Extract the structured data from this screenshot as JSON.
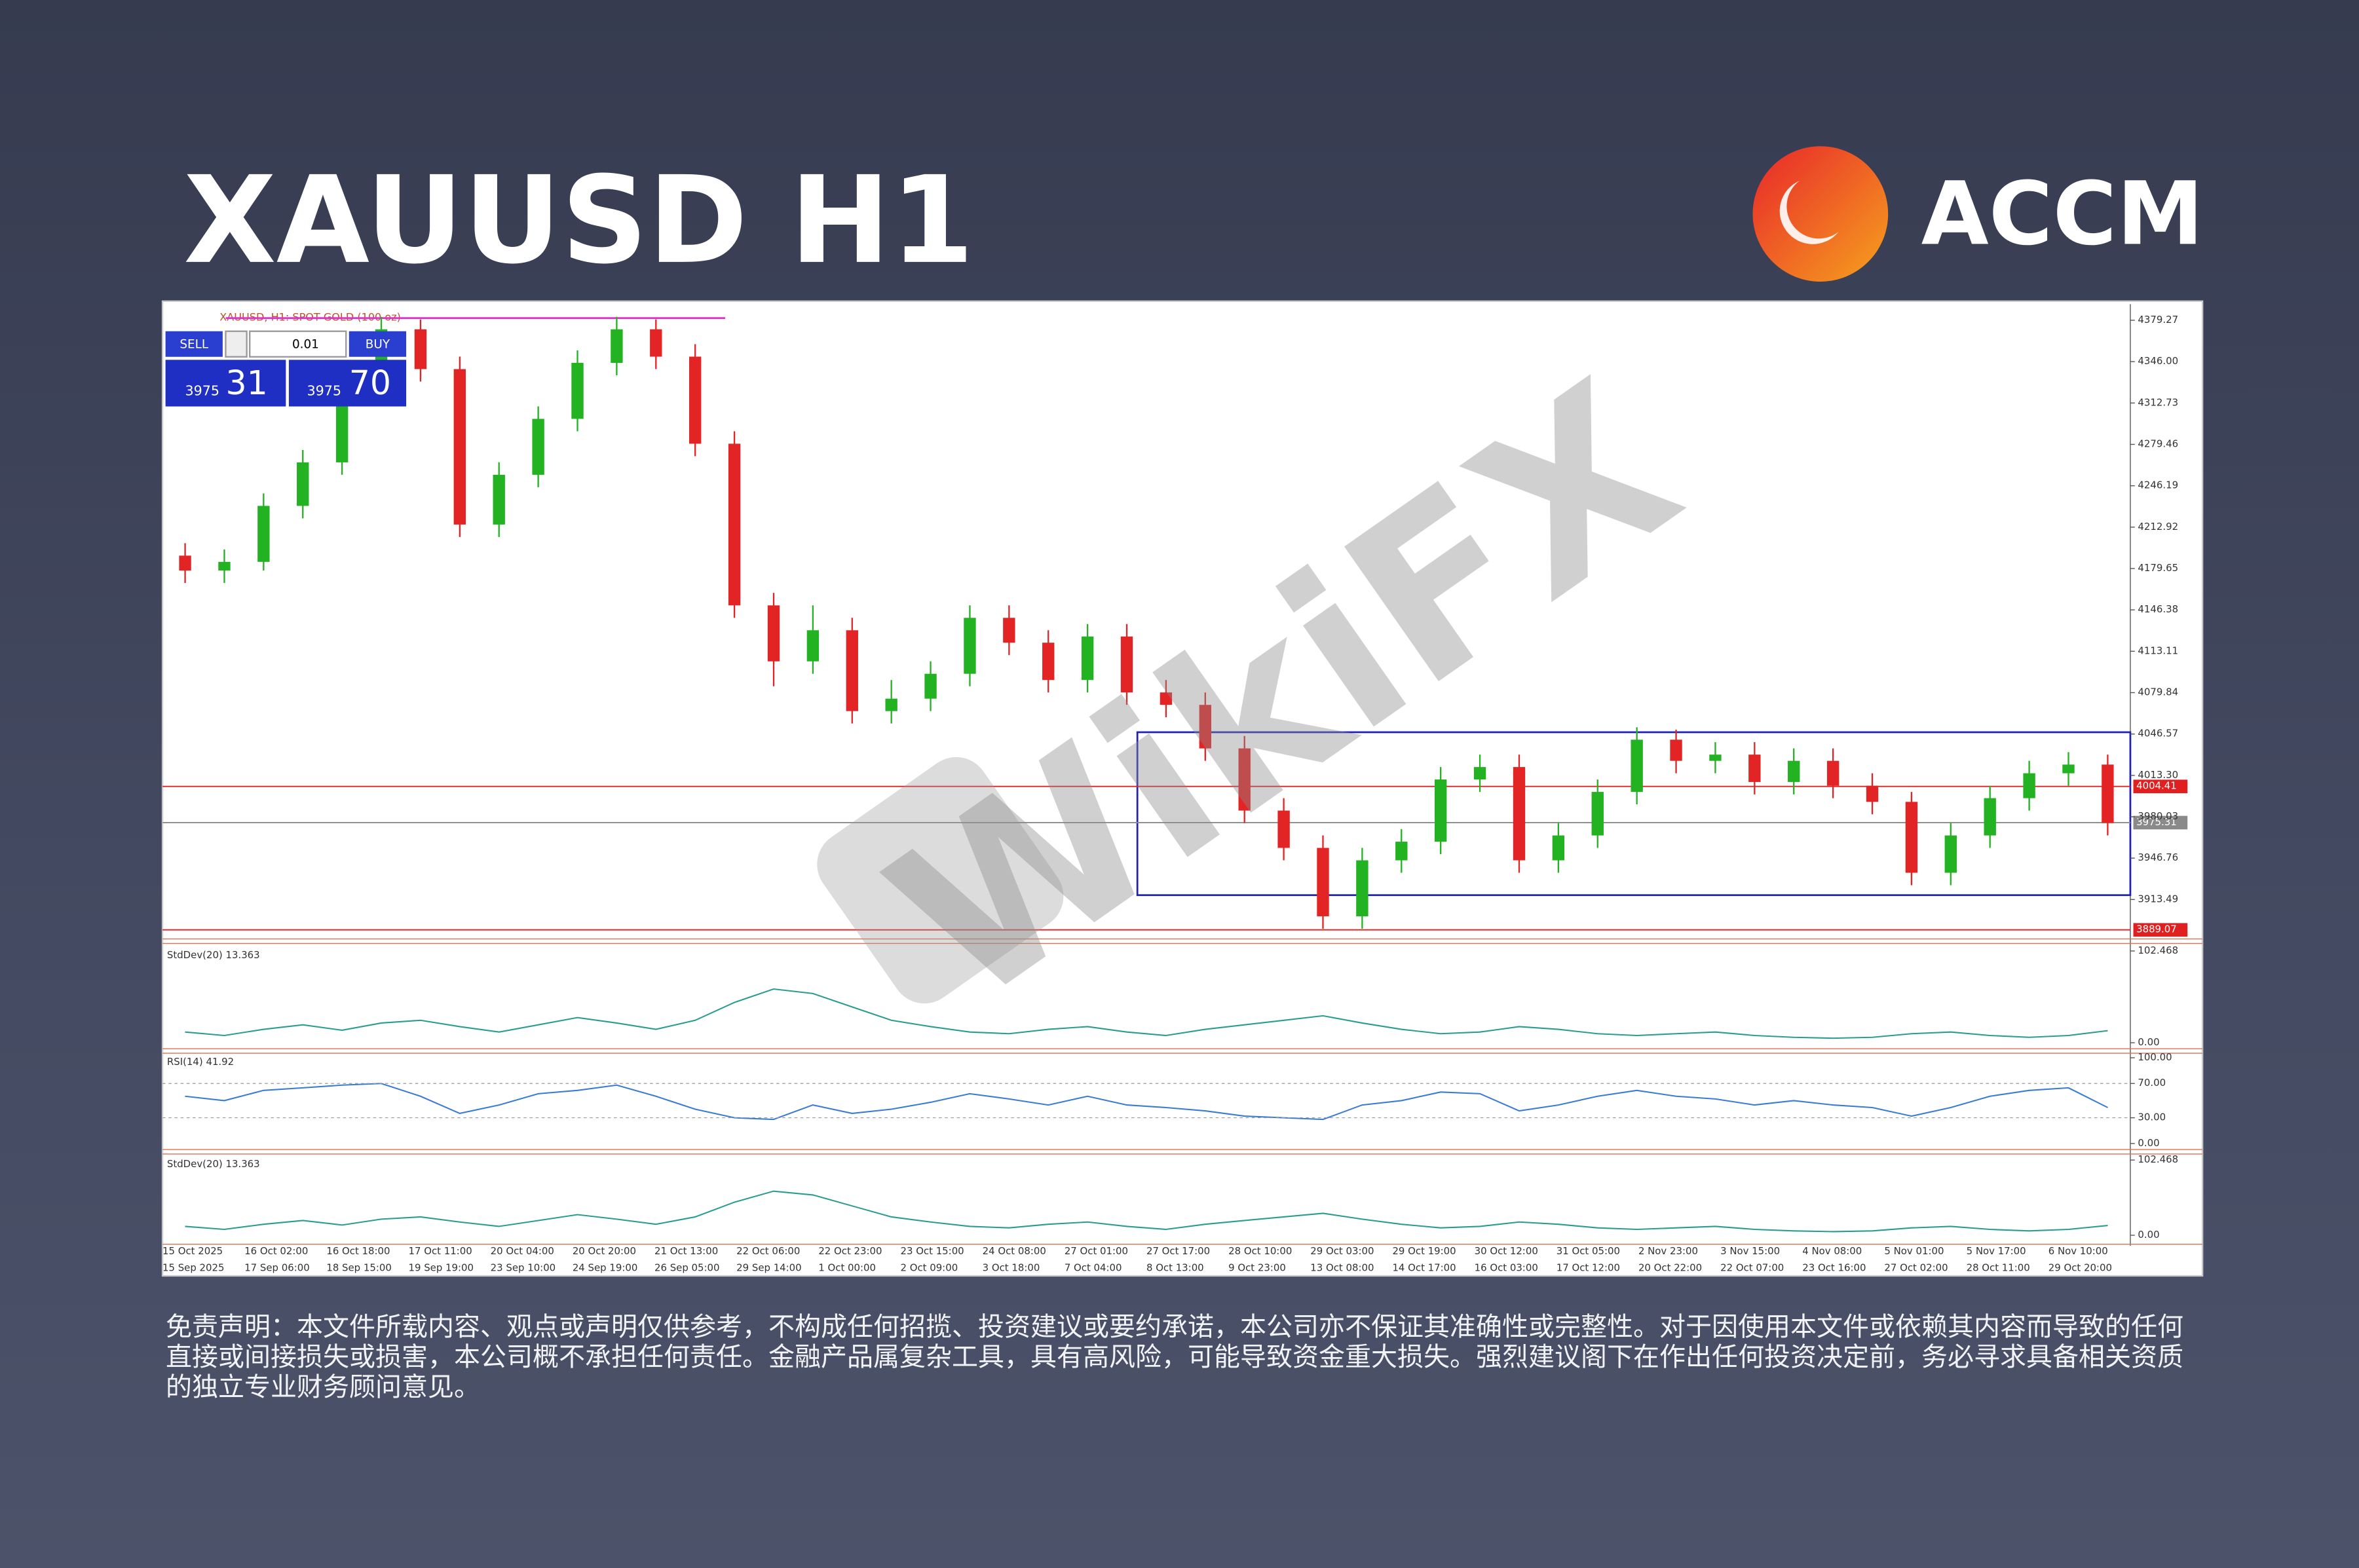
{
  "header": {
    "title": "XAUUSD H1",
    "brand": "ACCM"
  },
  "watermark": "WikiFX",
  "trade_panel": {
    "sell": "SELL",
    "buy": "BUY",
    "lot": "0.01",
    "bid_main": "3975",
    "bid_pips": "31",
    "ask_main": "3975",
    "ask_pips": "70"
  },
  "chart_data": [
    {
      "type": "candlestick",
      "title": "XAUUSD, H1: SPOT GOLD (100 oz)",
      "open": [
        4190,
        4178,
        4185,
        4230,
        4265,
        4320,
        4372,
        4340,
        4215,
        4255,
        4300,
        4345,
        4372,
        4350,
        4280,
        4150,
        4105,
        4130,
        4065,
        4075,
        4095,
        4140,
        4120,
        4090,
        4125,
        4080,
        4070,
        4035,
        3985,
        3955,
        3900,
        3945,
        3960,
        4010,
        4020,
        3945,
        3965,
        4000,
        4042,
        4025,
        4030,
        4008,
        4025,
        4005,
        3992,
        3935,
        3965,
        3995,
        4015,
        4022
      ],
      "high": [
        4200,
        4195,
        4240,
        4275,
        4330,
        4382,
        4380,
        4350,
        4265,
        4310,
        4355,
        4382,
        4380,
        4360,
        4290,
        4160,
        4150,
        4140,
        4090,
        4105,
        4150,
        4150,
        4130,
        4135,
        4135,
        4090,
        4080,
        4045,
        3995,
        3965,
        3955,
        3970,
        4020,
        4030,
        4030,
        3975,
        4010,
        4052,
        4050,
        4040,
        4040,
        4035,
        4035,
        4015,
        4000,
        3975,
        4005,
        4025,
        4032,
        4030
      ],
      "low": [
        4168,
        4168,
        4178,
        4220,
        4255,
        4310,
        4330,
        4205,
        4205,
        4245,
        4290,
        4335,
        4340,
        4270,
        4140,
        4085,
        4095,
        4055,
        4055,
        4065,
        4085,
        4110,
        4080,
        4080,
        4070,
        4060,
        4025,
        3975,
        3945,
        3890,
        3890,
        3935,
        3950,
        4000,
        3935,
        3935,
        3955,
        3990,
        4015,
        4015,
        3998,
        3998,
        3995,
        3982,
        3925,
        3925,
        3955,
        3985,
        4005,
        3965
      ],
      "close": [
        4178,
        4185,
        4230,
        4265,
        4320,
        4372,
        4340,
        4215,
        4255,
        4300,
        4345,
        4372,
        4350,
        4280,
        4150,
        4105,
        4130,
        4065,
        4075,
        4095,
        4140,
        4120,
        4090,
        4125,
        4080,
        4070,
        4035,
        3985,
        3955,
        3900,
        3945,
        3960,
        4010,
        4020,
        3945,
        3965,
        4000,
        4042,
        4025,
        4030,
        4008,
        4025,
        4005,
        3992,
        3935,
        3965,
        3995,
        4015,
        4022,
        3975
      ],
      "up_color": "#22b222",
      "down_color": "#e32424",
      "ylim": [
        3883,
        4391
      ],
      "yticks": [
        4379.27,
        {
          "value": 4346.0,
          "label": "4346.00"
        },
        4312.73,
        4279.46,
        4246.19,
        4212.92,
        4179.65,
        4146.38,
        4113.11,
        4079.84,
        4046.57,
        {
          "value": 4013.3,
          "label": "4013.30"
        },
        3980.03,
        3946.76,
        3913.49
      ],
      "hlines": [
        {
          "value": 4004.41,
          "color": "#e02020"
        },
        {
          "value": 3975.31,
          "color": "#8a8a8a"
        },
        {
          "value": 3889.07,
          "color": "#e02020"
        }
      ],
      "segments": [
        {
          "value": 4381,
          "color": "#e030d0"
        }
      ],
      "box": {
        "ylim": [
          3917,
          4048
        ],
        "color": "#1f23b5"
      }
    },
    {
      "type": "line",
      "title": "StdDev(20) 13.363",
      "color": "#2a9d8f",
      "values": [
        12,
        8,
        15,
        20,
        14,
        22,
        25,
        18,
        12,
        20,
        28,
        22,
        15,
        25,
        45,
        60,
        55,
        40,
        25,
        18,
        12,
        10,
        15,
        18,
        12,
        8,
        15,
        20,
        25,
        30,
        22,
        15,
        10,
        12,
        18,
        15,
        10,
        8,
        10,
        12,
        8,
        6,
        5,
        6,
        10,
        12,
        8,
        6,
        8,
        13.363
      ],
      "ylim": [
        0,
        102.468
      ],
      "yticks": [
        102.468,
        {
          "value": 0,
          "label": "0.00"
        }
      ],
      "grid": false
    },
    {
      "type": "line",
      "title": "RSI(14) 41.92",
      "color": "#3a7bd5",
      "values": [
        55,
        50,
        62,
        65,
        68,
        70,
        55,
        35,
        45,
        58,
        62,
        68,
        55,
        40,
        30,
        28,
        45,
        35,
        40,
        48,
        58,
        52,
        45,
        55,
        45,
        42,
        38,
        32,
        30,
        28,
        45,
        50,
        60,
        58,
        38,
        45,
        55,
        62,
        55,
        52,
        45,
        50,
        45,
        42,
        32,
        42,
        55,
        62,
        65,
        41.92
      ],
      "ylim": [
        0,
        100
      ],
      "yticks": [
        {
          "value": 100,
          "label": "100.00"
        },
        {
          "value": 70,
          "label": "70.00"
        },
        {
          "value": 30,
          "label": "30.00"
        },
        {
          "value": 0,
          "label": "0.00"
        }
      ],
      "grid": true
    },
    {
      "type": "line",
      "title": "StdDev(20) 13.363",
      "color": "#2a9d8f",
      "values": [
        12,
        8,
        15,
        20,
        14,
        22,
        25,
        18,
        12,
        20,
        28,
        22,
        15,
        25,
        45,
        60,
        55,
        40,
        25,
        18,
        12,
        10,
        15,
        18,
        12,
        8,
        15,
        20,
        25,
        30,
        22,
        15,
        10,
        12,
        18,
        15,
        10,
        8,
        10,
        12,
        8,
        6,
        5,
        6,
        10,
        12,
        8,
        6,
        8,
        13.363
      ],
      "ylim": [
        0,
        102.468
      ],
      "yticks": [
        102.468,
        {
          "value": 0,
          "label": "0.00"
        }
      ],
      "grid": false
    }
  ],
  "time_axis": {
    "labels": [
      "15 Oct 2025",
      "16 Oct 02:00",
      "16 Oct 18:00",
      "17 Oct 11:00",
      "20 Oct 04:00",
      "20 Oct 20:00",
      "21 Oct 13:00",
      "22 Oct 06:00",
      "22 Oct 23:00",
      "23 Oct 15:00",
      "24 Oct 08:00",
      "27 Oct 01:00",
      "27 Oct 17:00",
      "28 Oct 10:00",
      "29 Oct 03:00",
      "29 Oct 19:00",
      "30 Oct 12:00",
      "31 Oct 05:00",
      "2 Nov 23:00",
      "3 Nov 15:00",
      "4 Nov 08:00",
      "5 Nov 01:00",
      "5 Nov 17:00",
      "6 Nov 10:00"
    ],
    "labels_2": [
      "15 Sep 2025",
      "17 Sep 06:00",
      "18 Sep 15:00",
      "19 Sep 19:00",
      "23 Sep 10:00",
      "24 Sep 19:00",
      "26 Sep 05:00",
      "29 Sep 14:00",
      "1 Oct 00:00",
      "2 Oct 09:00",
      "3 Oct 18:00",
      "7 Oct 04:00",
      "8 Oct 13:00",
      "9 Oct 23:00",
      "13 Oct 08:00",
      "14 Oct 17:00",
      "16 Oct 03:00",
      "17 Oct 12:00",
      "20 Oct 22:00",
      "22 Oct 07:00",
      "23 Oct 16:00",
      "27 Oct 02:00",
      "28 Oct 11:00",
      "29 Oct 20:00"
    ]
  },
  "disclaimer": "免责声明：本文件所载内容、观点或声明仅供参考，不构成任何招揽、投资建议或要约承诺，本公司亦不保证其准确性或完整性。对于因使用本文件或依赖其内容而导致的任何直接或间接损失或损害，本公司概不承担任何责任。金融产品属复杂工具，具有高风险，可能导致资金重大损失。强烈建议阁下在作出任何投资决定前，务必寻求具备相关资质的独立专业财务顾问意见。"
}
